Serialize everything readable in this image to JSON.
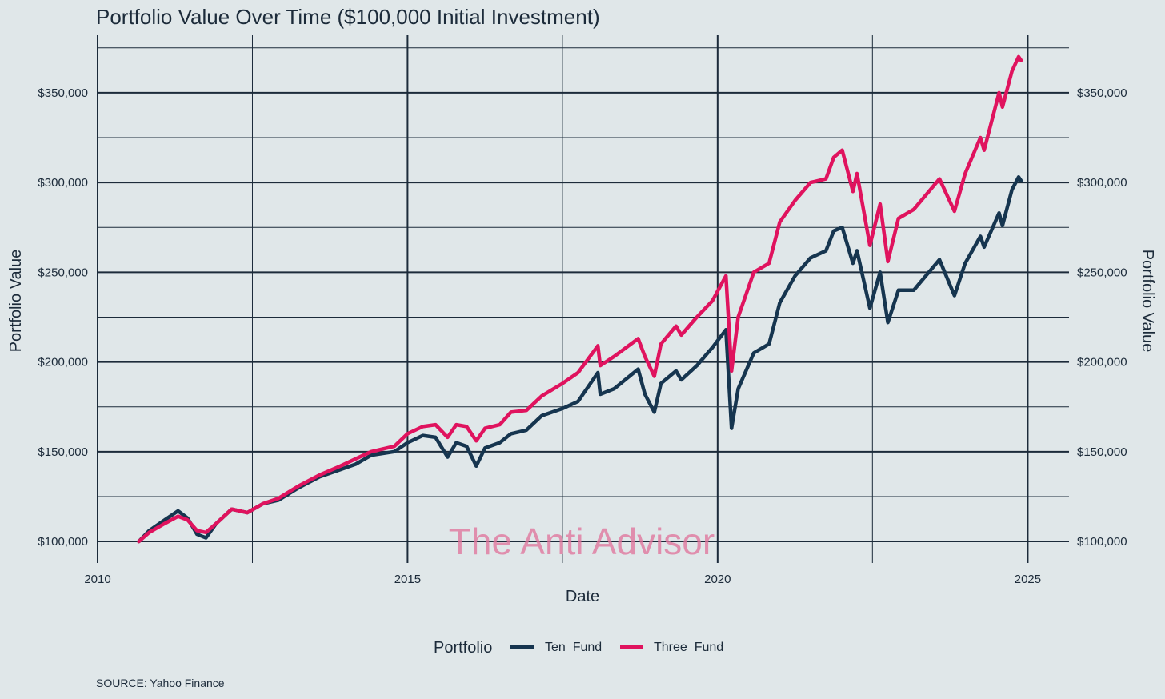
{
  "chart_data": {
    "type": "line",
    "title": "Portfolio Value Over Time ($100,000 Initial Investment)",
    "xlabel": "Date",
    "ylabel": "Portfolio Value",
    "ylabel_right": "Portfolio Value",
    "xlim": [
      "2010-01-01",
      "2025-09-01"
    ],
    "ylim": [
      88000,
      382000
    ],
    "x_ticks": [
      {
        "value": "2010-01-01",
        "label": "2010"
      },
      {
        "value": "2015-01-01",
        "label": "2015"
      },
      {
        "value": "2020-01-01",
        "label": "2020"
      },
      {
        "value": "2025-01-01",
        "label": "2025"
      }
    ],
    "x_minor_ticks": [
      "2012-07-01",
      "2017-07-01",
      "2022-07-01"
    ],
    "y_ticks": [
      {
        "value": 100000,
        "label": "$100,000"
      },
      {
        "value": 150000,
        "label": "$150,000"
      },
      {
        "value": 200000,
        "label": "$200,000"
      },
      {
        "value": 250000,
        "label": "$250,000"
      },
      {
        "value": 300000,
        "label": "$300,000"
      },
      {
        "value": 350000,
        "label": "$350,000"
      }
    ],
    "y_minor_ticks": [
      125000,
      175000,
      225000,
      275000,
      325000,
      375000
    ],
    "grid": true,
    "legend": {
      "title": "Portfolio",
      "position": "bottom"
    },
    "source": "SOURCE: Yahoo Finance",
    "watermark": "The Anti Advisor",
    "colors": {
      "background": "#e0e7e9",
      "axis": "#1c2b3a"
    },
    "series": [
      {
        "name": "Ten_Fund",
        "color": "#16354f",
        "points": [
          [
            "2010-09-01",
            100000
          ],
          [
            "2010-11-01",
            106000
          ],
          [
            "2011-02-01",
            112000
          ],
          [
            "2011-04-20",
            117000
          ],
          [
            "2011-06-15",
            113000
          ],
          [
            "2011-08-10",
            104000
          ],
          [
            "2011-10-01",
            102000
          ],
          [
            "2011-12-01",
            110000
          ],
          [
            "2012-03-01",
            118000
          ],
          [
            "2012-06-01",
            116000
          ],
          [
            "2012-09-01",
            121000
          ],
          [
            "2012-12-01",
            123000
          ],
          [
            "2013-04-01",
            130000
          ],
          [
            "2013-08-01",
            136000
          ],
          [
            "2013-12-01",
            140000
          ],
          [
            "2014-03-01",
            143000
          ],
          [
            "2014-06-01",
            148000
          ],
          [
            "2014-10-15",
            150000
          ],
          [
            "2015-01-01",
            155000
          ],
          [
            "2015-04-01",
            159000
          ],
          [
            "2015-06-15",
            158000
          ],
          [
            "2015-08-25",
            147000
          ],
          [
            "2015-10-15",
            155000
          ],
          [
            "2015-12-15",
            153000
          ],
          [
            "2016-02-10",
            142000
          ],
          [
            "2016-04-01",
            152000
          ],
          [
            "2016-06-27",
            155000
          ],
          [
            "2016-09-01",
            160000
          ],
          [
            "2016-12-01",
            162000
          ],
          [
            "2017-03-01",
            170000
          ],
          [
            "2017-07-01",
            174000
          ],
          [
            "2017-10-01",
            178000
          ],
          [
            "2018-01-26",
            194000
          ],
          [
            "2018-02-09",
            182000
          ],
          [
            "2018-05-01",
            185000
          ],
          [
            "2018-09-20",
            196000
          ],
          [
            "2018-10-30",
            182000
          ],
          [
            "2018-12-24",
            172000
          ],
          [
            "2019-02-01",
            188000
          ],
          [
            "2019-05-01",
            195000
          ],
          [
            "2019-06-01",
            190000
          ],
          [
            "2019-09-01",
            198000
          ],
          [
            "2019-12-01",
            208000
          ],
          [
            "2020-02-19",
            218000
          ],
          [
            "2020-03-23",
            163000
          ],
          [
            "2020-05-01",
            185000
          ],
          [
            "2020-08-01",
            205000
          ],
          [
            "2020-10-30",
            210000
          ],
          [
            "2021-01-01",
            233000
          ],
          [
            "2021-04-01",
            248000
          ],
          [
            "2021-07-01",
            258000
          ],
          [
            "2021-09-30",
            262000
          ],
          [
            "2021-11-15",
            273000
          ],
          [
            "2022-01-04",
            275000
          ],
          [
            "2022-03-08",
            255000
          ],
          [
            "2022-04-01",
            262000
          ],
          [
            "2022-06-16",
            230000
          ],
          [
            "2022-08-15",
            250000
          ],
          [
            "2022-09-30",
            222000
          ],
          [
            "2022-12-01",
            240000
          ],
          [
            "2023-03-01",
            240000
          ],
          [
            "2023-07-31",
            257000
          ],
          [
            "2023-10-27",
            237000
          ],
          [
            "2023-12-29",
            255000
          ],
          [
            "2024-03-28",
            270000
          ],
          [
            "2024-04-19",
            264000
          ],
          [
            "2024-07-16",
            283000
          ],
          [
            "2024-08-05",
            276000
          ],
          [
            "2024-09-30",
            296000
          ],
          [
            "2024-11-08",
            303000
          ],
          [
            "2024-11-22",
            301000
          ]
        ]
      },
      {
        "name": "Three_Fund",
        "color": "#e0135e",
        "points": [
          [
            "2010-09-01",
            100000
          ],
          [
            "2010-11-01",
            105000
          ],
          [
            "2011-02-01",
            110000
          ],
          [
            "2011-04-20",
            114000
          ],
          [
            "2011-06-15",
            112000
          ],
          [
            "2011-08-10",
            106000
          ],
          [
            "2011-10-01",
            105000
          ],
          [
            "2011-12-01",
            110000
          ],
          [
            "2012-03-01",
            118000
          ],
          [
            "2012-06-01",
            116000
          ],
          [
            "2012-09-01",
            121000
          ],
          [
            "2012-12-01",
            124000
          ],
          [
            "2013-04-01",
            131000
          ],
          [
            "2013-08-01",
            137000
          ],
          [
            "2013-12-01",
            142000
          ],
          [
            "2014-03-01",
            146000
          ],
          [
            "2014-06-01",
            150000
          ],
          [
            "2014-10-15",
            153000
          ],
          [
            "2015-01-01",
            160000
          ],
          [
            "2015-04-01",
            164000
          ],
          [
            "2015-06-15",
            165000
          ],
          [
            "2015-08-25",
            158000
          ],
          [
            "2015-10-15",
            165000
          ],
          [
            "2015-12-15",
            164000
          ],
          [
            "2016-02-10",
            156000
          ],
          [
            "2016-04-01",
            163000
          ],
          [
            "2016-06-27",
            165000
          ],
          [
            "2016-09-01",
            172000
          ],
          [
            "2016-12-01",
            173000
          ],
          [
            "2017-03-01",
            181000
          ],
          [
            "2017-07-01",
            188000
          ],
          [
            "2017-10-01",
            194000
          ],
          [
            "2018-01-26",
            209000
          ],
          [
            "2018-02-09",
            198000
          ],
          [
            "2018-05-01",
            203000
          ],
          [
            "2018-09-20",
            213000
          ],
          [
            "2018-10-30",
            203000
          ],
          [
            "2018-12-24",
            192000
          ],
          [
            "2019-02-01",
            210000
          ],
          [
            "2019-05-01",
            220000
          ],
          [
            "2019-06-01",
            215000
          ],
          [
            "2019-09-01",
            225000
          ],
          [
            "2019-12-01",
            234000
          ],
          [
            "2020-02-19",
            248000
          ],
          [
            "2020-03-23",
            195000
          ],
          [
            "2020-05-01",
            225000
          ],
          [
            "2020-08-01",
            250000
          ],
          [
            "2020-10-30",
            255000
          ],
          [
            "2021-01-01",
            278000
          ],
          [
            "2021-04-01",
            290000
          ],
          [
            "2021-07-01",
            300000
          ],
          [
            "2021-09-30",
            302000
          ],
          [
            "2021-11-15",
            314000
          ],
          [
            "2022-01-04",
            318000
          ],
          [
            "2022-03-08",
            295000
          ],
          [
            "2022-04-01",
            305000
          ],
          [
            "2022-06-16",
            265000
          ],
          [
            "2022-08-15",
            288000
          ],
          [
            "2022-09-30",
            256000
          ],
          [
            "2022-12-01",
            280000
          ],
          [
            "2023-03-01",
            285000
          ],
          [
            "2023-07-31",
            302000
          ],
          [
            "2023-10-27",
            284000
          ],
          [
            "2023-12-29",
            305000
          ],
          [
            "2024-03-28",
            325000
          ],
          [
            "2024-04-19",
            318000
          ],
          [
            "2024-07-16",
            350000
          ],
          [
            "2024-08-05",
            342000
          ],
          [
            "2024-09-30",
            362000
          ],
          [
            "2024-11-08",
            370000
          ],
          [
            "2024-11-22",
            368000
          ]
        ]
      }
    ]
  }
}
